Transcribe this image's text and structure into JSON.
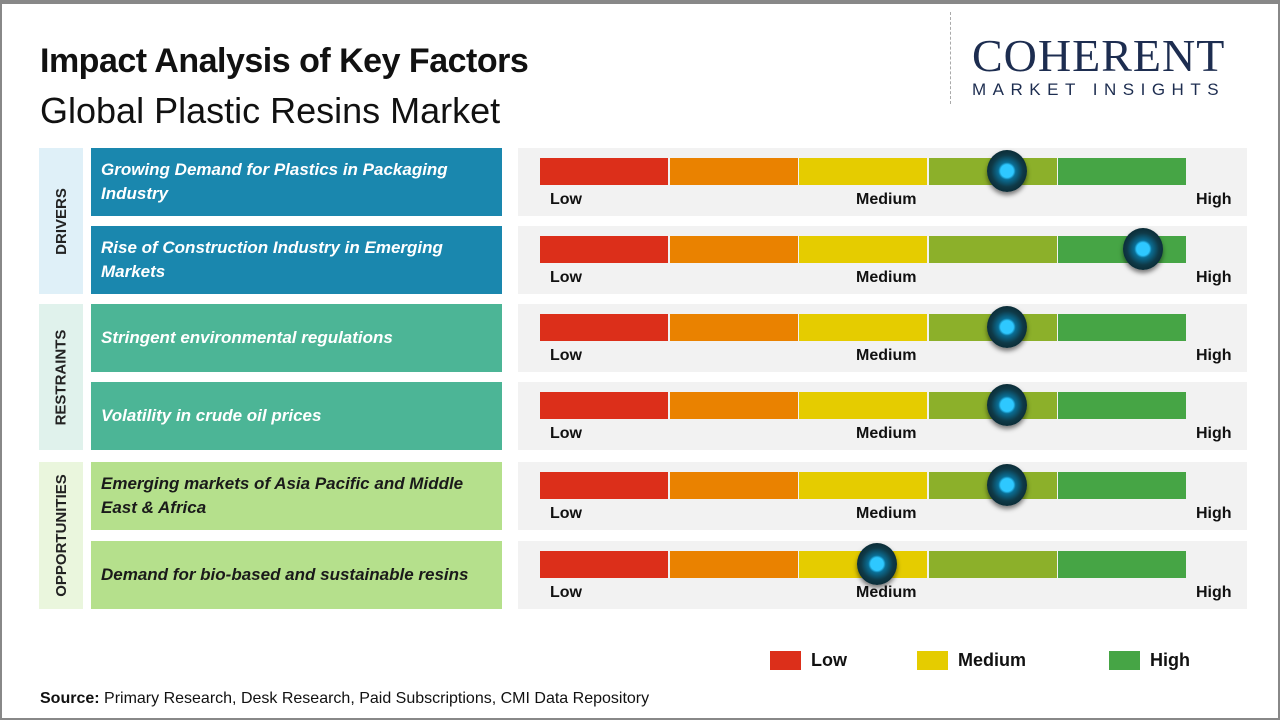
{
  "header": {
    "title": "Impact Analysis of Key Factors",
    "subtitle": "Global Plastic Resins Market"
  },
  "logo": {
    "line1": "COHERENT",
    "line2": "MARKET INSIGHTS"
  },
  "chart_data": {
    "type": "table",
    "scale_labels": [
      "Low",
      "Medium",
      "High"
    ],
    "scale_colors": [
      "#dc2f1a",
      "#ea8200",
      "#e5cc00",
      "#8cb02a",
      "#46a545"
    ],
    "categories": [
      {
        "name": "DRIVERS",
        "color": "#1a87ae",
        "band": "#dff0f8",
        "text": "#ffffff",
        "factors": [
          {
            "label": "Growing Demand for Plastics in Packaging Industry",
            "impact": 0.72
          },
          {
            "label": "Rise of Construction Industry in Emerging Markets",
            "impact": 0.93
          }
        ]
      },
      {
        "name": "RESTRAINTS",
        "color": "#4cb596",
        "band": "#e0f2ec",
        "text": "#ffffff",
        "factors": [
          {
            "label": "Stringent environmental regulations",
            "impact": 0.72
          },
          {
            "label": "Volatility in crude oil prices",
            "impact": 0.72
          }
        ]
      },
      {
        "name": "OPPORTUNITIES",
        "color": "#b5e08c",
        "band": "#eaf6dd",
        "text": "#1a1a1a",
        "factors": [
          {
            "label": "Emerging markets of Asia Pacific and Middle East & Africa",
            "impact": 0.72
          },
          {
            "label": "Demand for bio-based and sustainable resins",
            "impact": 0.52
          }
        ]
      }
    ],
    "legend": [
      {
        "label": "Low",
        "color": "#dc2f1a"
      },
      {
        "label": "Medium",
        "color": "#e5cc00"
      },
      {
        "label": "High",
        "color": "#46a545"
      }
    ]
  },
  "source": {
    "label": "Source:",
    "text": " Primary Research, Desk Research, Paid Subscriptions, CMI Data Repository"
  }
}
